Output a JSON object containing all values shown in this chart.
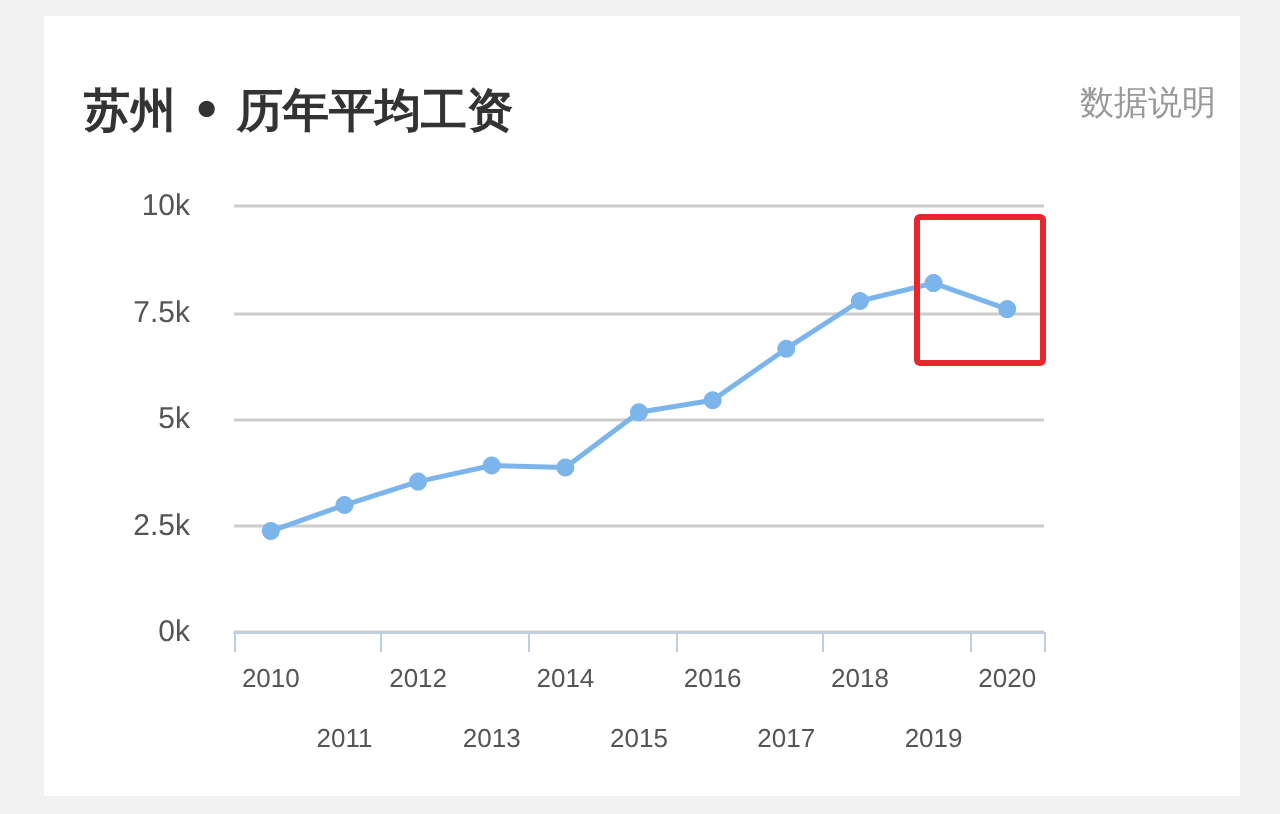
{
  "chart_data": {
    "type": "line",
    "title": "苏州 • 历年平均工资",
    "annotations": [
      "数据说明"
    ],
    "categories": [
      "2010",
      "2011",
      "2012",
      "2013",
      "2014",
      "2015",
      "2016",
      "2017",
      "2018",
      "2019",
      "2020"
    ],
    "series": [
      {
        "color": "#7cb5ec",
        "values": [
          2370,
          2980,
          3530,
          3910,
          3860,
          5160,
          5440,
          6650,
          7770,
          8190,
          7580
        ]
      }
    ],
    "ylim": [
      0,
      10000
    ],
    "yticks": [
      {
        "value": 0,
        "label": "0k"
      },
      {
        "value": 2500,
        "label": "2.5k"
      },
      {
        "value": 5000,
        "label": "5k"
      },
      {
        "value": 7500,
        "label": "7.5k"
      },
      {
        "value": 10000,
        "label": "10k"
      }
    ],
    "grid": "y",
    "marker": "circle",
    "line_style": "solid"
  }
}
